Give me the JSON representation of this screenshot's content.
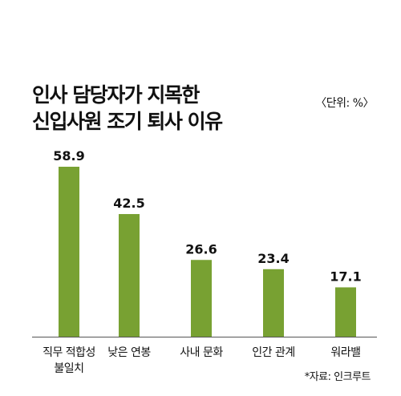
{
  "title_line1": "인사 담당자가 지목한",
  "title_line2": "신입사원 조기 퇴사 이유",
  "unit": "〈단위: %〉",
  "source": "*자료: 인크루트",
  "chart_data": {
    "type": "bar",
    "categories": [
      [
        "직무 적합성",
        "불일치"
      ],
      [
        "낮은 연봉"
      ],
      [
        "사내 문화"
      ],
      [
        "인간 관계"
      ],
      [
        "워라밸"
      ]
    ],
    "values": [
      58.9,
      42.5,
      26.6,
      23.4,
      17.1
    ],
    "value_labels": [
      "58.9",
      "42.5",
      "26.6",
      "23.4",
      "17.1"
    ],
    "bar_color": "#78a132",
    "ylim": [
      0,
      58.9
    ],
    "grid": false
  }
}
